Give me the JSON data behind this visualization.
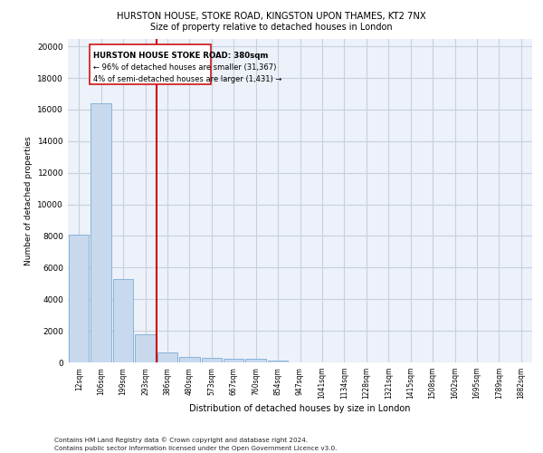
{
  "title1": "HURSTON HOUSE, STOKE ROAD, KINGSTON UPON THAMES, KT2 7NX",
  "title2": "Size of property relative to detached houses in London",
  "xlabel": "Distribution of detached houses by size in London",
  "ylabel": "Number of detached properties",
  "footnote1": "Contains HM Land Registry data © Crown copyright and database right 2024.",
  "footnote2": "Contains public sector information licensed under the Open Government Licence v3.0.",
  "bar_labels": [
    "12sqm",
    "106sqm",
    "199sqm",
    "293sqm",
    "386sqm",
    "480sqm",
    "573sqm",
    "667sqm",
    "760sqm",
    "854sqm",
    "947sqm",
    "1041sqm",
    "1134sqm",
    "1228sqm",
    "1321sqm",
    "1415sqm",
    "1508sqm",
    "1602sqm",
    "1695sqm",
    "1789sqm",
    "1882sqm"
  ],
  "bar_values": [
    8100,
    16400,
    5300,
    1750,
    650,
    350,
    280,
    230,
    220,
    130,
    0,
    0,
    0,
    0,
    0,
    0,
    0,
    0,
    0,
    0,
    0
  ],
  "bar_color": "#c8d9ee",
  "bar_edge_color": "#7aadd4",
  "vline_color": "#cc0000",
  "annotation_line1": "HURSTON HOUSE STOKE ROAD: 380sqm",
  "annotation_line2": "← 96% of detached houses are smaller (31,367)",
  "annotation_line3": "4% of semi-detached houses are larger (1,431) →",
  "ylim": [
    0,
    20500
  ],
  "yticks": [
    0,
    2000,
    4000,
    6000,
    8000,
    10000,
    12000,
    14000,
    16000,
    18000,
    20000
  ],
  "bg_color": "#edf1f9",
  "grid_color": "#c8d0e0"
}
